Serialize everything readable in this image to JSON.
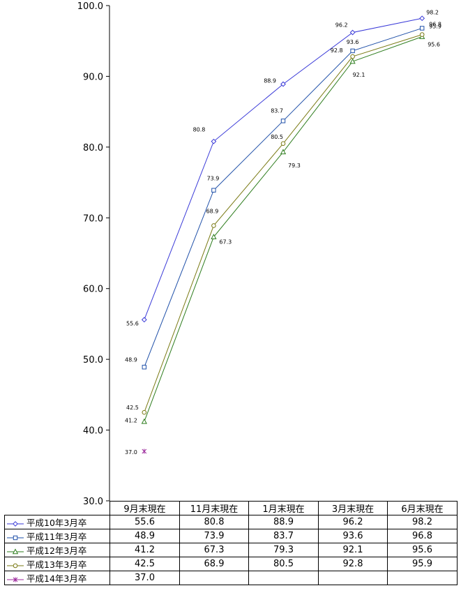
{
  "chart_data": {
    "type": "line",
    "categories": [
      "9月末現在",
      "11月末現在",
      "1月末現在",
      "3月末現在",
      "6月末現在"
    ],
    "ylim": [
      30.0,
      100.0
    ],
    "yticks": [
      "30.0",
      "40.0",
      "50.0",
      "60.0",
      "70.0",
      "80.0",
      "90.0",
      "100.0"
    ],
    "grid": false,
    "legend": "data table below chart",
    "series": [
      {
        "name": "平成10年3月卒",
        "values": [
          55.6,
          80.8,
          88.9,
          96.2,
          98.2
        ],
        "labels": [
          "55.6",
          "80.8",
          "88.9",
          "96.2",
          "98.2"
        ],
        "color": "#3a3ad8",
        "marker": "diamond"
      },
      {
        "name": "平成11年3月卒",
        "values": [
          48.9,
          73.9,
          83.7,
          93.6,
          96.8
        ],
        "labels": [
          "48.9",
          "73.9",
          "83.7",
          "93.6",
          "96.8"
        ],
        "color": "#1e4fa8",
        "marker": "square"
      },
      {
        "name": "平成12年3月卒",
        "values": [
          41.2,
          67.3,
          79.3,
          92.1,
          95.6
        ],
        "labels": [
          "41.2",
          "67.3",
          "79.3",
          "92.1",
          "95.6"
        ],
        "color": "#2e7d1e",
        "marker": "triangle"
      },
      {
        "name": "平成13年3月卒",
        "values": [
          42.5,
          68.9,
          80.5,
          92.8,
          95.9
        ],
        "labels": [
          "42.5",
          "68.9",
          "80.5",
          "92.8",
          "95.9"
        ],
        "color": "#7a7a14",
        "marker": "circle"
      },
      {
        "name": "平成14年3月卒",
        "values": [
          37.0,
          null,
          null,
          null,
          null
        ],
        "labels": [
          "37.0",
          "",
          "",
          "",
          ""
        ],
        "color": "#9c2a9c",
        "marker": "star"
      }
    ]
  }
}
